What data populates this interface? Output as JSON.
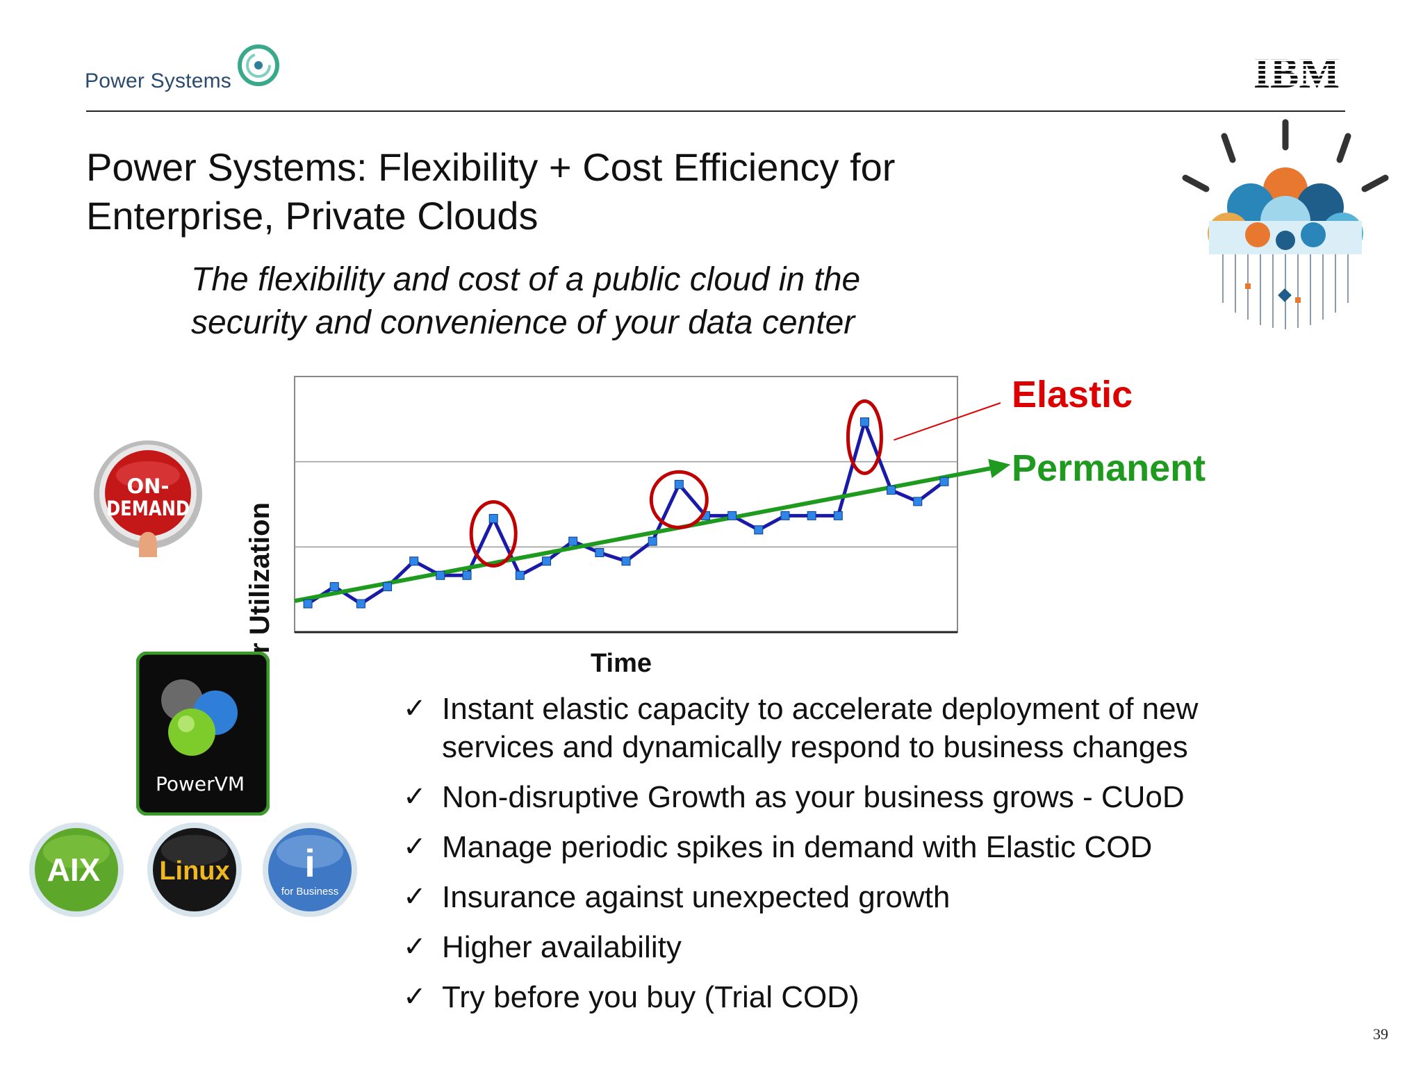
{
  "header": {
    "brand_text": "Power Systems",
    "logo_text": "IBM"
  },
  "slide": {
    "title": "Power Systems: Flexibility + Cost Efficiency for Enterprise, Private Clouds",
    "subtitle": "The flexibility and cost of a public cloud in the security and convenience of your data center",
    "page_number": "39"
  },
  "badges": {
    "on_demand_line1": "ON-",
    "on_demand_line2": "DEMAND",
    "powervm": "PowerVM",
    "aix": "AIX",
    "linux": "Linux",
    "ibm_i_small": "for Business",
    "ibm_i_letter": "i"
  },
  "bullets": [
    "Instant elastic capacity to accelerate deployment of new services and dynamically respond to business changes",
    "Non-disruptive Growth as your business grows - CUoD",
    "Manage periodic spikes in demand with Elastic COD",
    "Insurance against unexpected growth",
    "Higher availability",
    "Try before you buy (Trial COD)"
  ],
  "chart_data": {
    "type": "line",
    "xlabel": "Time",
    "ylabel": "Processor Utilization",
    "x": [
      1,
      2,
      3,
      4,
      5,
      6,
      7,
      8,
      9,
      10,
      11,
      12,
      13,
      14,
      15,
      16,
      17,
      18,
      19,
      20,
      21,
      22,
      23,
      24,
      25
    ],
    "series": [
      {
        "name": "",
        "color": "#1a1aa8",
        "marker_color": "#2f86e8",
        "values": [
          1.0,
          1.6,
          1.0,
          1.6,
          2.5,
          2.0,
          2.0,
          4.0,
          2.0,
          2.5,
          3.2,
          2.8,
          2.5,
          3.2,
          5.2,
          4.1,
          4.1,
          3.6,
          4.1,
          4.1,
          4.1,
          7.4,
          5.0,
          4.6,
          5.3
        ]
      }
    ],
    "trend": {
      "label": "Permanent",
      "color": "#1e9a1e",
      "start": [
        0.5,
        1.1
      ],
      "end": [
        27.5,
        5.9
      ]
    },
    "highlighted_points": [
      8,
      15,
      22
    ],
    "highlight_color": "#c00000",
    "annotations": {
      "elastic": "Elastic",
      "elastic_color": "#dd0000",
      "permanent": "Permanent",
      "permanent_color": "#1e9a1e"
    },
    "xlim": [
      0.5,
      25.5
    ],
    "ylim": [
      0,
      9
    ],
    "gridlines_y": [
      3,
      6
    ],
    "grid": true,
    "tick_labels": false
  }
}
